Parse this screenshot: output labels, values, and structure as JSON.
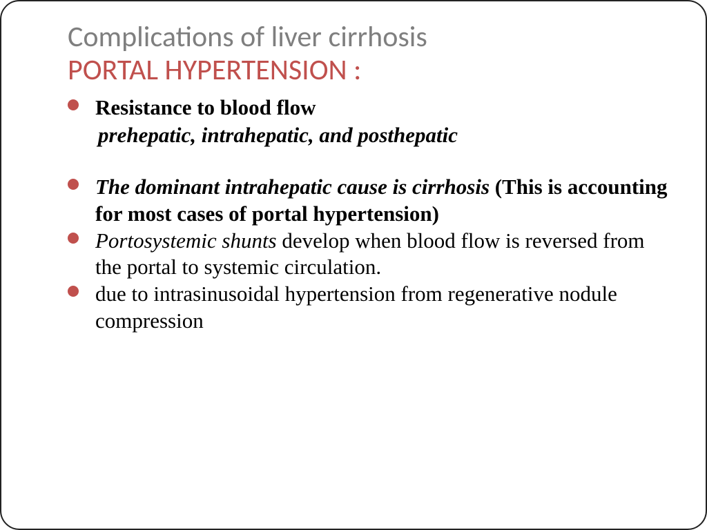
{
  "slide": {
    "title_line1": "Complications of liver cirrhosis",
    "title_line2": "PORTAL HYPERTENSION :",
    "title_line1_color": "#7f7f7f",
    "title_line2_color": "#c0504d",
    "title_fontsize": 42,
    "bullet_color": "#c0504d",
    "body_fontsize": 31,
    "body_color": "#000000",
    "border_radius": 28,
    "bullets": [
      {
        "main": "Resistance to blood flow",
        "main_style": "bold",
        "sub": "prehepatic, intrahepatic, and posthepatic",
        "sub_style": "boldital",
        "space_after": true
      },
      {
        "main_parts": [
          {
            "text": "The dominant intrahepatic cause is cirrhosis",
            "style": "boldital"
          },
          {
            "text": " (This is accounting for most cases of portal hypertension)",
            "style": "bold"
          }
        ]
      },
      {
        "main_parts": [
          {
            "text": "Portosystemic shunts",
            "style": "italic"
          },
          {
            "text": " develop when blood flow is reversed from the portal to systemic circulation.",
            "style": "normal"
          }
        ]
      },
      {
        "main": "due to intrasinusoidal hypertension from regenerative nodule compression",
        "main_style": "normal"
      }
    ]
  }
}
